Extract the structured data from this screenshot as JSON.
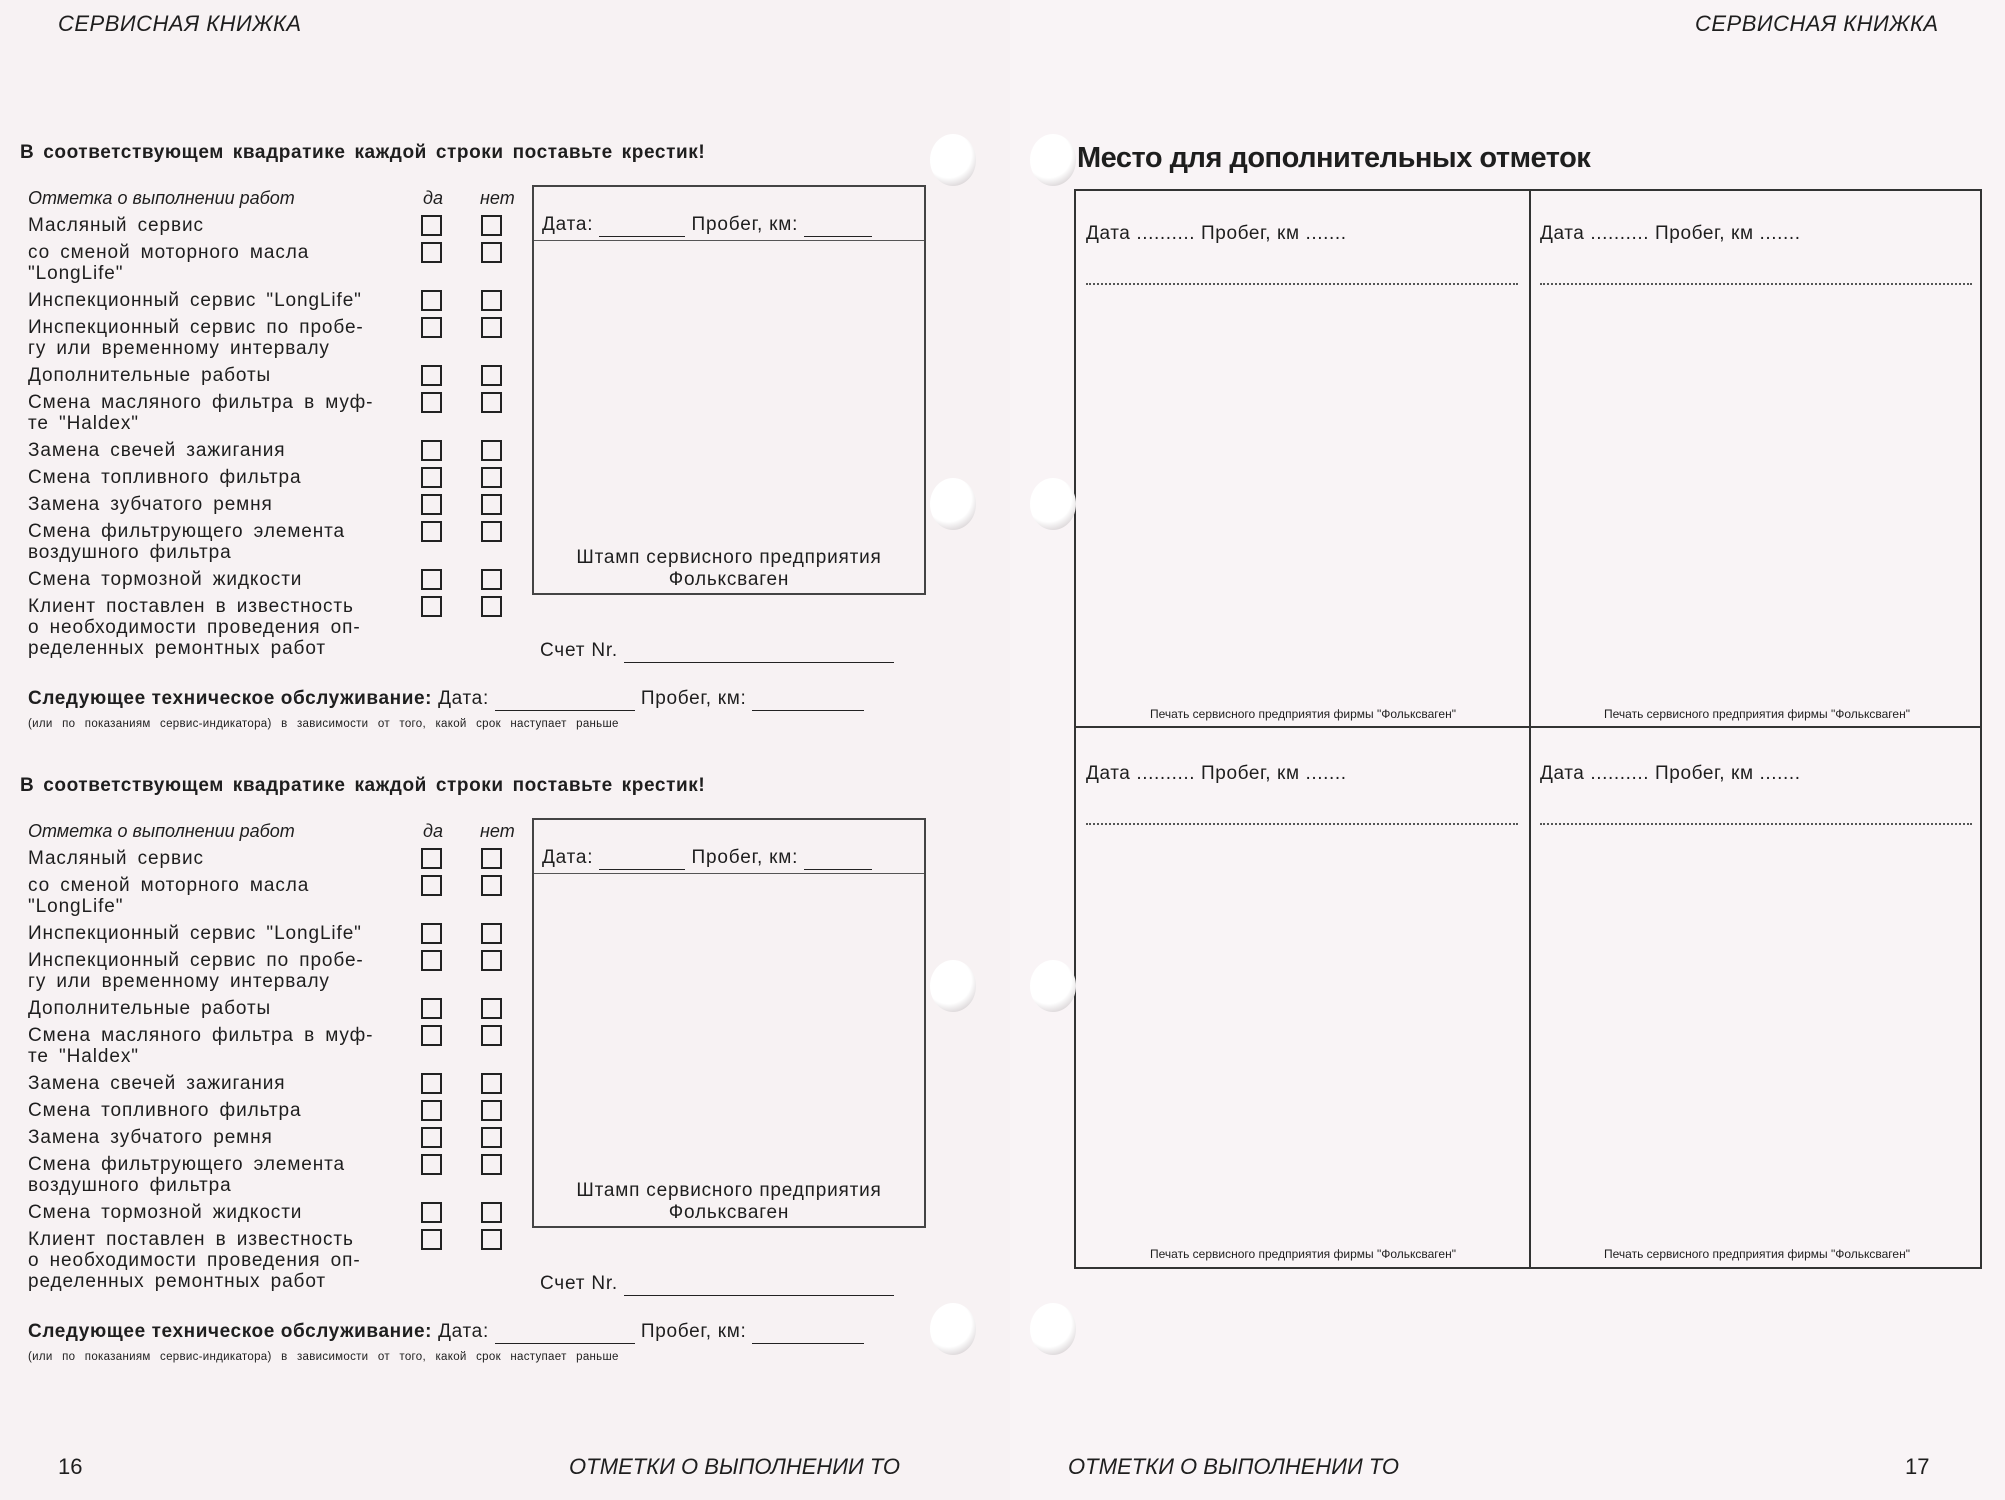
{
  "header": {
    "left": "СЕРВИСНАЯ КНИЖКА",
    "right": "СЕРВИСНАЯ КНИЖКА"
  },
  "footer": {
    "left_page_number": "16",
    "left_section": "ОТМЕТКИ О ВЫПОЛНЕНИИ ТО",
    "right_section": "ОТМЕТКИ О ВЫПОЛНЕНИИ ТО",
    "right_page_number": "17"
  },
  "form": {
    "instruction": "В соответствующем квадратике каждой строки поставьте крестик!",
    "col_work": "Отметка о выполнении работ",
    "col_yes": "да",
    "col_no": "нет",
    "items": [
      [
        "Масляный сервис"
      ],
      [
        "со сменой моторного масла",
        "\"LongLife\""
      ],
      [
        "Инспекционный сервис \"LongLife\""
      ],
      [
        "Инспекционный сервис по пробе-",
        "гу или временному интервалу"
      ],
      [
        "Дополнительные работы"
      ],
      [
        "Смена масляного фильтра в муф-",
        "те \"Haldex\""
      ],
      [
        "Замена свечей зажигания"
      ],
      [
        "Смена топливного фильтра"
      ],
      [
        "Замена зубчатого ремня"
      ],
      [
        "Смена фильтрующего элемента",
        "воздушного фильтра"
      ],
      [
        "Смена тормозной жидкости"
      ],
      [
        "Клиент поставлен в известность",
        "о необходимости проведения оп-",
        "ределенных ремонтных работ"
      ]
    ],
    "stamp_date": "Дата:",
    "stamp_mileage": "Пробег, км:",
    "stamp_line1": "Штамп сервисного предприятия",
    "stamp_line2": "Фольксваген",
    "account": "Счет Nr.",
    "next_service": "Следующее техническое обслуживание:",
    "next_date": "Дата:",
    "next_mileage": "Пробег, км:",
    "note": "(или по показаниям сервис-индикатора) в зависимости от того, какой срок наступает раньше"
  },
  "notes_page": {
    "title": "Место для дополнительных отметок",
    "cell_date": "Дата ..........",
    "cell_mileage": "Пробег, км .......",
    "cell_seal": "Печать сервисного предприятия фирмы \"Фольксваген\""
  }
}
